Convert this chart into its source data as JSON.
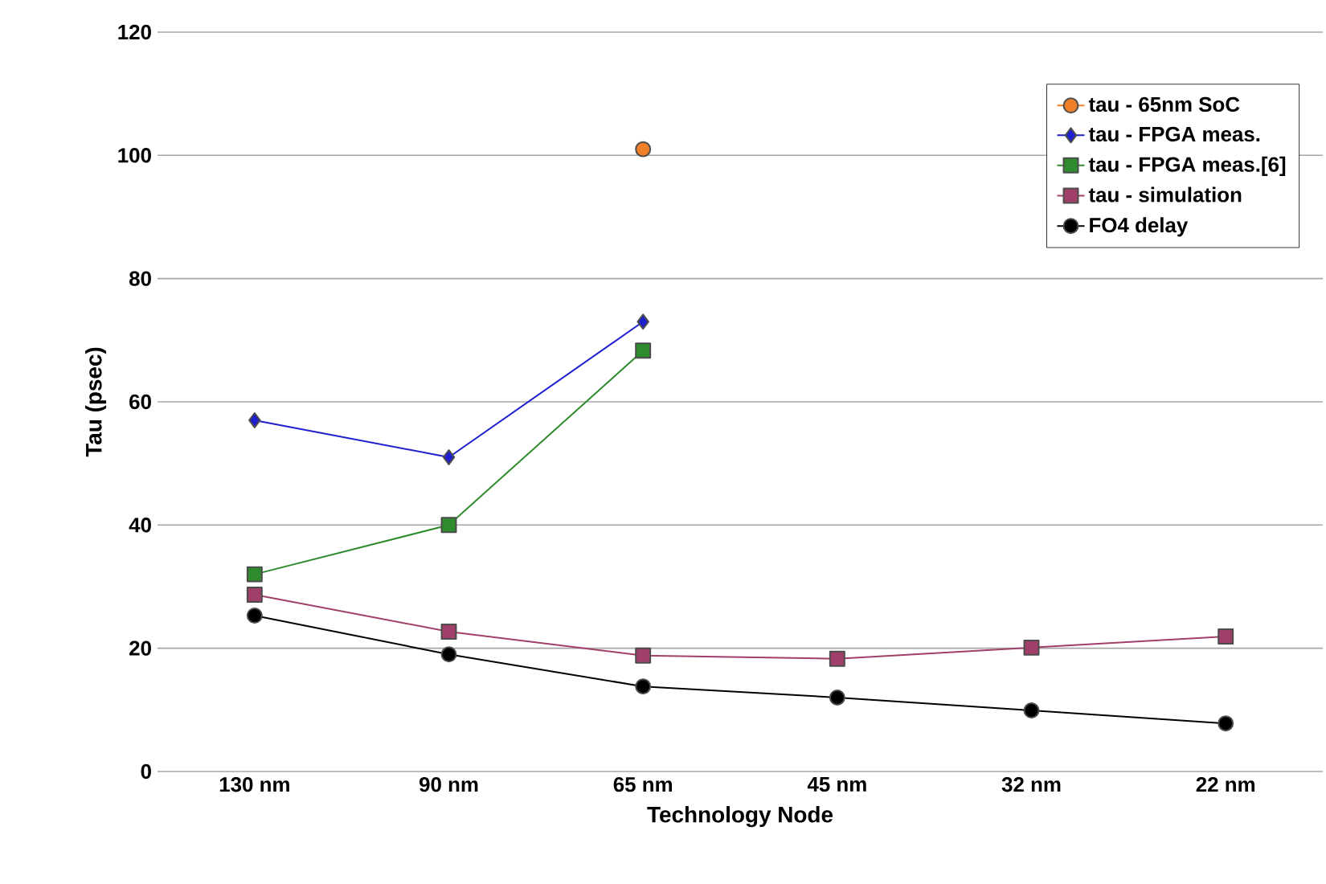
{
  "chart_data": {
    "type": "line",
    "xlabel": "Technology Node",
    "ylabel": "Tau (psec)",
    "categories": [
      "130 nm",
      "90 nm",
      "65 nm",
      "45 nm",
      "32 nm",
      "22 nm"
    ],
    "ylim": [
      0,
      120
    ],
    "yticks": [
      0,
      20,
      40,
      60,
      80,
      100,
      120
    ],
    "grid": "y",
    "legend": "top right",
    "series": [
      {
        "name": "tau - 65nm SoC",
        "color": "#f07f2a",
        "marker": "circle",
        "values": [
          null,
          null,
          101,
          null,
          null,
          null
        ]
      },
      {
        "name": "tau - FPGA meas.",
        "color": "#1f1fd0",
        "marker": "diamond",
        "values": [
          57,
          51,
          73,
          null,
          null,
          null
        ]
      },
      {
        "name": "tau - FPGA meas.[6]",
        "color": "#2e8b2e",
        "marker": "square",
        "values": [
          32,
          40,
          68.3,
          null,
          null,
          null
        ]
      },
      {
        "name": "tau - simulation",
        "color": "#a0406a",
        "marker": "square",
        "values": [
          28.7,
          22.7,
          18.8,
          18.3,
          20.1,
          21.9
        ]
      },
      {
        "name": "FO4 delay",
        "color": "#000000",
        "marker": "circle",
        "values": [
          25.3,
          19,
          13.8,
          12,
          9.9,
          7.8
        ]
      }
    ]
  }
}
